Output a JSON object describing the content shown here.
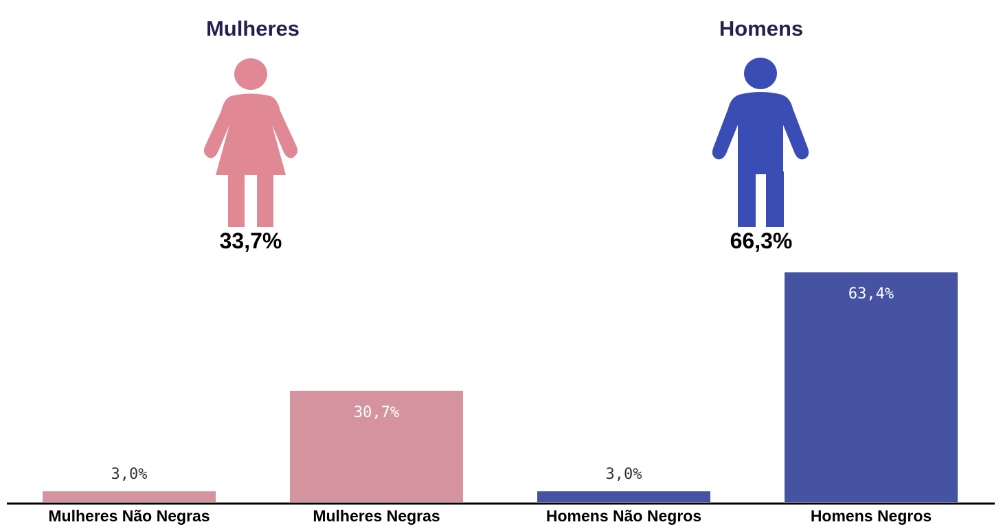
{
  "groups": {
    "women": {
      "title": "Mulheres",
      "total": "33,7%",
      "icon": "woman-icon",
      "color": "#e08893"
    },
    "men": {
      "title": "Homens",
      "total": "66,3%",
      "icon": "man-icon",
      "color": "#3a4db5"
    }
  },
  "chart_data": {
    "type": "bar",
    "categories": [
      "Mulheres Não Negras",
      "Mulheres Negras",
      "Homens Não Negros",
      "Homens Negros"
    ],
    "values": [
      3.0,
      30.7,
      3.0,
      63.4
    ],
    "value_labels": [
      "3,0%",
      "30,7%",
      "3,0%",
      "63,4%"
    ],
    "colors": [
      "#d5939e",
      "#d5939e",
      "#4653a3",
      "#4653a3"
    ],
    "ylim": [
      0,
      63.4
    ],
    "grid": false,
    "legend": "none"
  }
}
